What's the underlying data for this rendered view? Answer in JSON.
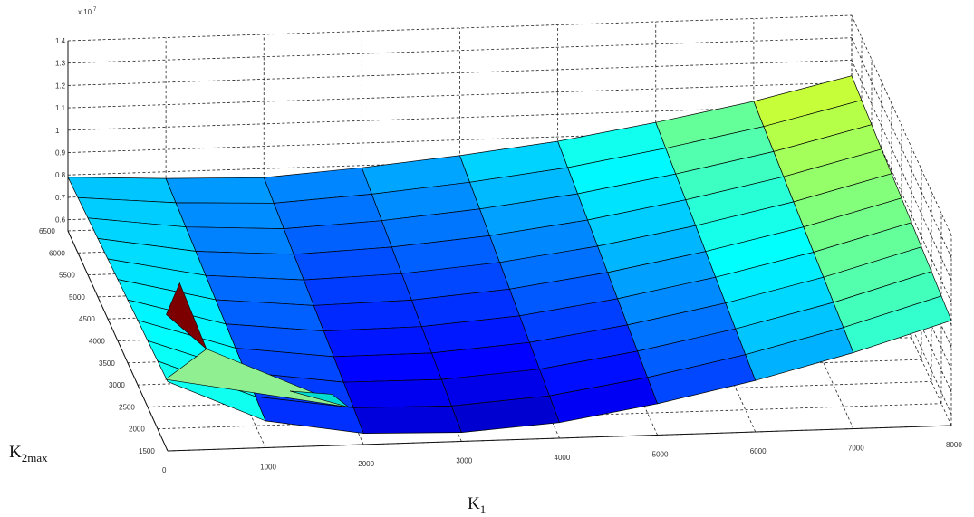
{
  "chart_data": {
    "type": "surface",
    "title": "",
    "xlabel": {
      "main": "K",
      "sub": "1"
    },
    "ylabel": {
      "main": "K",
      "sub": "2max"
    },
    "z_multiplier": "x 10",
    "z_exponent": "7",
    "x_ticks": [
      "0",
      "1000",
      "2000",
      "3000",
      "4000",
      "5000",
      "6000",
      "7000",
      "8000"
    ],
    "y_ticks": [
      "1500",
      "2000",
      "2500",
      "3000",
      "3500",
      "4000",
      "4500",
      "5000",
      "5500",
      "6000",
      "6500"
    ],
    "z_ticks": [
      "0.6",
      "0.7",
      "0.8",
      "0.9",
      "1",
      "1.1",
      "1.2",
      "1.3",
      "1.4"
    ],
    "xlim": [
      0,
      8000
    ],
    "ylim": [
      1500,
      6500
    ],
    "zlim": [
      0.55,
      1.4
    ],
    "grid": true,
    "colormap": "jet",
    "surface_x": [
      0,
      1000,
      2000,
      3000,
      4000,
      5000,
      6000,
      7000,
      8000
    ],
    "surface_y": [
      1500,
      2000,
      2500,
      3000,
      3500,
      4000,
      4500,
      5000,
      5500,
      6000,
      6500
    ],
    "surface_z_near_edge": [
      0.86,
      0.67,
      0.6,
      0.59,
      0.62,
      0.69,
      0.78,
      0.89,
      1.02
    ],
    "surface_z_far_edge": [
      0.79,
      0.77,
      0.76,
      0.79,
      0.83,
      0.88,
      0.95,
      1.03,
      1.13
    ],
    "artifact_triangles": [
      {
        "color": "#7d0000",
        "points": [
          [
            200,
            2550,
            0.95
          ],
          [
            550,
            3600,
            0.88
          ],
          [
            600,
            2500,
            0.8
          ]
        ]
      },
      {
        "color": "#90ef90",
        "points": [
          [
            0,
            1600,
            0.85
          ],
          [
            600,
            2500,
            0.8
          ],
          [
            1950,
            2000,
            0.62
          ]
        ]
      },
      {
        "color": "#00dcd2",
        "points": [
          [
            1350,
            2000,
            0.7
          ],
          [
            1950,
            2000,
            0.62
          ],
          [
            1800,
            2100,
            0.66
          ]
        ]
      }
    ]
  }
}
